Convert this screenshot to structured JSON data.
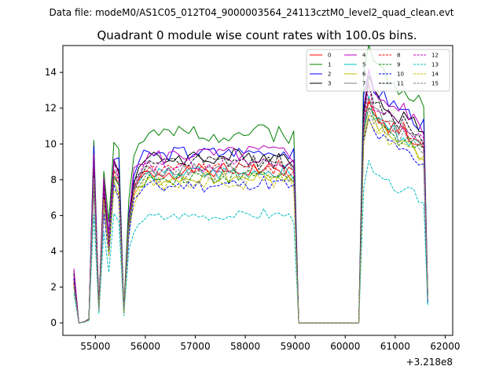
{
  "suptitle": "Data file: modeM0/AS1C05_012T04_9000003564_24113cztM0_level2_quad_clean.evt",
  "chart_data": {
    "type": "line",
    "title": "Quadrant 0 module wise count rates with 100.0s bins.",
    "xlabel": "",
    "ylabel": "",
    "x_offset_label": "+3.218e8",
    "xlim": [
      54350,
      62150
    ],
    "ylim": [
      -0.7,
      15.5
    ],
    "xticks": [
      55000,
      56000,
      57000,
      58000,
      59000,
      60000,
      61000,
      62000
    ],
    "xtick_labels": [
      "55000",
      "56000",
      "57000",
      "58000",
      "59000",
      "60000",
      "61000",
      "62000"
    ],
    "yticks": [
      0,
      2,
      4,
      6,
      8,
      10,
      12,
      14
    ],
    "ytick_labels": [
      "0",
      "2",
      "4",
      "6",
      "8",
      "10",
      "12",
      "14"
    ],
    "grid": false,
    "legend_position": "top-right",
    "base_x": [
      54570,
      54670,
      54770,
      54870,
      54970,
      55070,
      55170,
      55270,
      55370,
      55470,
      55570,
      55670,
      55770,
      55870,
      55970,
      56070,
      56170,
      56270,
      56370,
      56470,
      56570,
      56670,
      56770,
      56870,
      56970,
      57070,
      57170,
      57270,
      57370,
      57470,
      57570,
      57670,
      57770,
      57870,
      57970,
      58070,
      58170,
      58270,
      58370,
      58470,
      58570,
      58670,
      58770,
      58870,
      58970,
      59070,
      59170,
      60270,
      60370,
      60470,
      60570,
      60670,
      60770,
      60870,
      60970,
      61070,
      61170,
      61270,
      61370,
      61470,
      61570,
      61650
    ],
    "base_profile": [
      2.75,
      0.0,
      0.05,
      0.2,
      9.6,
      0.85,
      8.0,
      4.95,
      9.45,
      8.9,
      0.65,
      6.2,
      8.4,
      9.1,
      9.35,
      9.45,
      9.55,
      9.5,
      9.4,
      9.6,
      9.55,
      9.65,
      9.6,
      9.55,
      9.75,
      9.7,
      9.55,
      9.65,
      9.6,
      9.55,
      9.7,
      9.6,
      9.75,
      9.65,
      9.55,
      9.7,
      9.8,
      9.65,
      9.9,
      9.7,
      9.65,
      9.8,
      9.7,
      9.55,
      9.45,
      0.0,
      0.0,
      0.0,
      12.5,
      14.2,
      13.3,
      13.0,
      12.8,
      12.5,
      12.4,
      12.0,
      12.2,
      11.8,
      11.6,
      11.3,
      11.1,
      1.6
    ],
    "series": [
      {
        "name": "0",
        "color": "#ff0000",
        "dash": "solid",
        "scale": 0.88,
        "seed": 1
      },
      {
        "name": "1",
        "color": "#008000",
        "dash": "solid",
        "scale": 1.1,
        "seed": 2
      },
      {
        "name": "2",
        "color": "#0000ff",
        "dash": "solid",
        "scale": 0.99,
        "seed": 3
      },
      {
        "name": "3",
        "color": "#000000",
        "dash": "solid",
        "scale": 0.96,
        "seed": 4
      },
      {
        "name": "4",
        "color": "#bf00bf",
        "dash": "solid",
        "scale": 0.98,
        "seed": 5
      },
      {
        "name": "5",
        "color": "#00bfbf",
        "dash": "solid",
        "scale": 0.87,
        "seed": 6
      },
      {
        "name": "6",
        "color": "#bfbf00",
        "dash": "solid",
        "scale": 0.84,
        "seed": 7
      },
      {
        "name": "7",
        "color": "#808080",
        "dash": "solid",
        "scale": 0.9,
        "seed": 8
      },
      {
        "name": "8",
        "color": "#ff0000",
        "dash": "dashed",
        "scale": 0.89,
        "seed": 9
      },
      {
        "name": "9",
        "color": "#008000",
        "dash": "dashed",
        "scale": 0.85,
        "seed": 10
      },
      {
        "name": "10",
        "color": "#0000ff",
        "dash": "dashed",
        "scale": 0.8,
        "seed": 11
      },
      {
        "name": "11",
        "color": "#000000",
        "dash": "dashed",
        "scale": 0.93,
        "seed": 12
      },
      {
        "name": "12",
        "color": "#bf00bf",
        "dash": "dashed",
        "scale": 0.92,
        "seed": 13
      },
      {
        "name": "13",
        "color": "#00bfbf",
        "dash": "dashed",
        "scale": 0.62,
        "seed": 14
      },
      {
        "name": "14",
        "color": "#bfbf00",
        "dash": "dashed",
        "scale": 0.82,
        "seed": 15
      },
      {
        "name": "15",
        "color": "#808080",
        "dash": "dashed",
        "scale": 0.86,
        "seed": 16
      }
    ]
  }
}
